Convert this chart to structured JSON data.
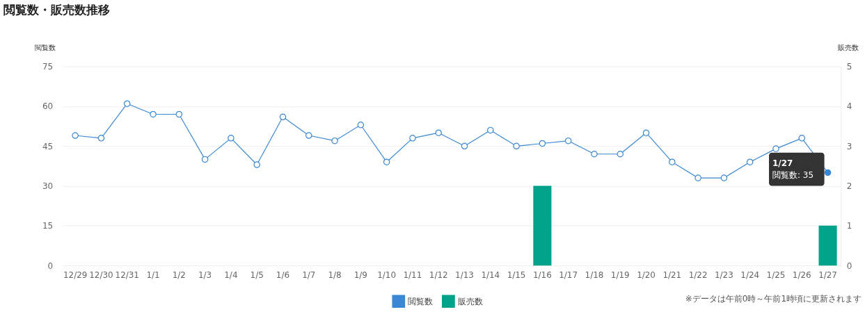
{
  "chart_data": {
    "type": "line",
    "title": "閲覧数・販売数推移",
    "ylabel": "閲覧数",
    "y2label": "販売数",
    "categories": [
      "12/29",
      "12/30",
      "12/31",
      "1/1",
      "1/2",
      "1/3",
      "1/4",
      "1/5",
      "1/6",
      "1/7",
      "1/8",
      "1/9",
      "1/10",
      "1/11",
      "1/12",
      "1/13",
      "1/14",
      "1/15",
      "1/16",
      "1/17",
      "1/18",
      "1/19",
      "1/20",
      "1/21",
      "1/22",
      "1/23",
      "1/24",
      "1/25",
      "1/26",
      "1/27"
    ],
    "series": [
      {
        "name": "閲覧数",
        "color": "#3a88d4",
        "values": [
          49,
          48,
          61,
          57,
          57,
          40,
          48,
          38,
          56,
          49,
          47,
          53,
          39,
          48,
          50,
          45,
          51,
          45,
          46,
          47,
          42,
          42,
          50,
          39,
          33,
          33,
          39,
          44,
          48,
          35
        ]
      },
      {
        "name": "販売数",
        "type": "bar",
        "axis": "y2",
        "color": "#00a38a",
        "values": [
          0,
          0,
          0,
          0,
          0,
          0,
          0,
          0,
          0,
          0,
          0,
          0,
          0,
          0,
          0,
          0,
          0,
          0,
          2,
          0,
          0,
          0,
          0,
          0,
          0,
          0,
          0,
          0,
          0,
          1
        ]
      }
    ],
    "ylim": [
      0,
      75
    ],
    "yticks": [
      0,
      15,
      30,
      45,
      60,
      75
    ],
    "y2lim": [
      0,
      5
    ],
    "y2ticks": [
      0,
      1,
      2,
      3,
      4,
      5
    ],
    "grid": "y",
    "legend": "bottom",
    "marker": "circle",
    "line_style": "solid",
    "annotations": [
      {
        "text": "閲覧数: 35",
        "x": "1/27",
        "y": 35
      },
      "1/27",
      "※データは午前0時～午前1時頃に更新されます"
    ]
  }
}
